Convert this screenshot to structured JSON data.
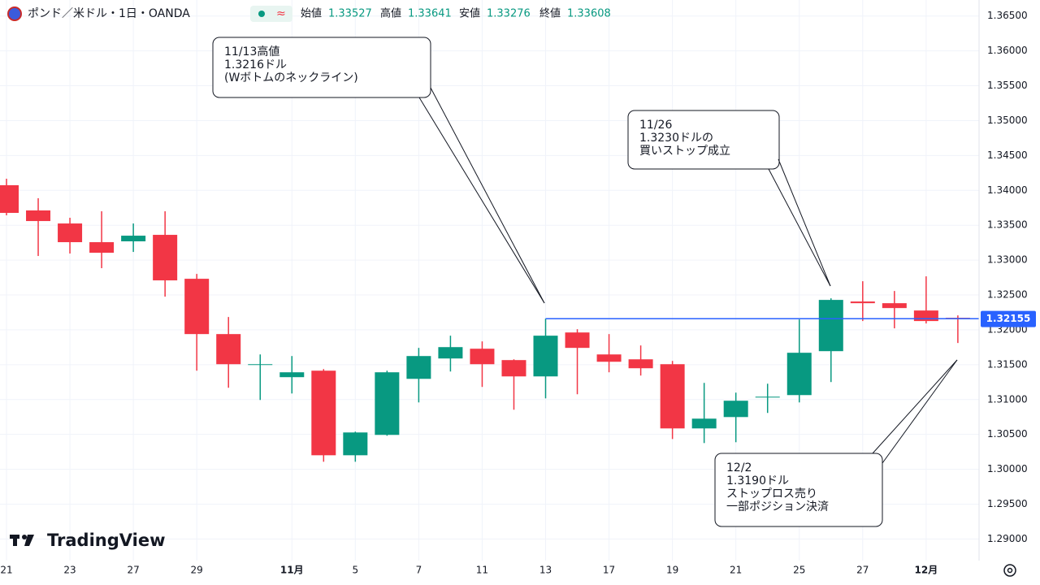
{
  "header": {
    "symbol": "ポンド／米ドル・1日・OANDA",
    "badge": "≈",
    "ohlc": [
      [
        "始値",
        "1.33527"
      ],
      [
        "高値",
        "1.33641"
      ],
      [
        "安値",
        "1.33276"
      ],
      [
        "終値",
        "1.33608"
      ]
    ]
  },
  "chart_data": {
    "type": "candlestick",
    "categories": [
      "21",
      null,
      "23",
      null,
      "27",
      null,
      "29",
      null,
      null,
      "11月",
      null,
      "5",
      null,
      "7",
      null,
      "11",
      null,
      "13",
      null,
      "17",
      null,
      "19",
      null,
      "21",
      null,
      "25",
      null,
      "27",
      null,
      "12月",
      null
    ],
    "open": [
      1.34074,
      1.33712,
      1.33525,
      1.33257,
      1.33269,
      1.33362,
      1.32732,
      1.31939,
      1.31496,
      1.31321,
      1.31414,
      1.30201,
      1.30493,
      1.31297,
      1.31589,
      1.31729,
      1.31566,
      1.31332,
      1.31962,
      1.31647,
      1.31577,
      1.31507,
      1.30586,
      1.30749,
      1.31029,
      1.31064,
      1.31694,
      1.32406,
      1.32382,
      1.32277,
      1.32172
    ],
    "high": [
      1.34167,
      1.33887,
      1.33607,
      1.337,
      1.33525,
      1.337,
      1.32802,
      1.32184,
      1.31647,
      1.31624,
      1.31437,
      1.3054,
      1.31414,
      1.31741,
      1.31916,
      1.31834,
      1.31577,
      1.3216,
      1.32009,
      1.31939,
      1.31776,
      1.31554,
      1.31239,
      1.31099,
      1.31227,
      1.32149,
      1.32452,
      1.32697,
      1.32557,
      1.32767,
      1.32207
    ],
    "low": [
      1.33642,
      1.33059,
      1.33094,
      1.32884,
      1.33117,
      1.32476,
      1.31414,
      1.31169,
      1.30994,
      1.31087,
      1.30108,
      1.30108,
      1.30481,
      1.30959,
      1.31402,
      1.31181,
      1.30854,
      1.31017,
      1.31076,
      1.31391,
      1.31344,
      1.30434,
      1.30376,
      1.30388,
      1.30808,
      1.30959,
      1.31251,
      1.32126,
      1.32021,
      1.32091,
      1.31811
    ],
    "close": [
      1.33677,
      1.3356,
      1.33257,
      1.33105,
      1.3335,
      1.32709,
      1.31939,
      1.31507,
      1.31507,
      1.31391,
      1.30201,
      1.30528,
      1.31391,
      1.31624,
      1.31752,
      1.31507,
      1.31332,
      1.31916,
      1.31741,
      1.31542,
      1.31449,
      1.30586,
      1.30726,
      1.30983,
      1.31041,
      1.31671,
      1.32429,
      1.32382,
      1.32312,
      1.32126,
      1.32155
    ],
    "up_color": "#089981",
    "down_color": "#f23645",
    "ylim": [
      1.2869,
      1.3673
    ],
    "yticks": [
      {
        "value": 1.365,
        "label": "1.36500"
      },
      {
        "value": 1.36,
        "label": "1.36000"
      },
      {
        "value": 1.355,
        "label": "1.35500"
      },
      {
        "value": 1.35,
        "label": "1.35000"
      },
      {
        "value": 1.345,
        "label": "1.34500"
      },
      {
        "value": 1.34,
        "label": "1.34000"
      },
      {
        "value": 1.335,
        "label": "1.33500"
      },
      {
        "value": 1.33,
        "label": "1.33000"
      },
      {
        "value": 1.325,
        "label": "1.32500"
      },
      {
        "value": 1.32,
        "label": "1.32000"
      },
      {
        "value": 1.315,
        "label": "1.31500"
      },
      {
        "value": 1.31,
        "label": "1.31000"
      },
      {
        "value": 1.305,
        "label": "1.30500"
      },
      {
        "value": 1.3,
        "label": "1.30000"
      },
      {
        "value": 1.295,
        "label": "1.29500"
      },
      {
        "value": 1.29,
        "label": "1.29000"
      }
    ],
    "grid": true,
    "hline": {
      "value": 1.3216,
      "color": "#2962ff"
    },
    "last_price": 1.32155,
    "annotations": [
      {
        "lines": [
          "11/13高値",
          "1.3216ドル",
          "(Wボトムのネックライン)"
        ]
      },
      {
        "lines": [
          "11/26",
          "1.3230ドルの",
          "買いストップ成立"
        ]
      },
      {
        "lines": [
          "12/2",
          "1.3190ドル",
          "ストップロス売り",
          "一部ポジション決済"
        ]
      }
    ]
  },
  "logo": "TradingView"
}
